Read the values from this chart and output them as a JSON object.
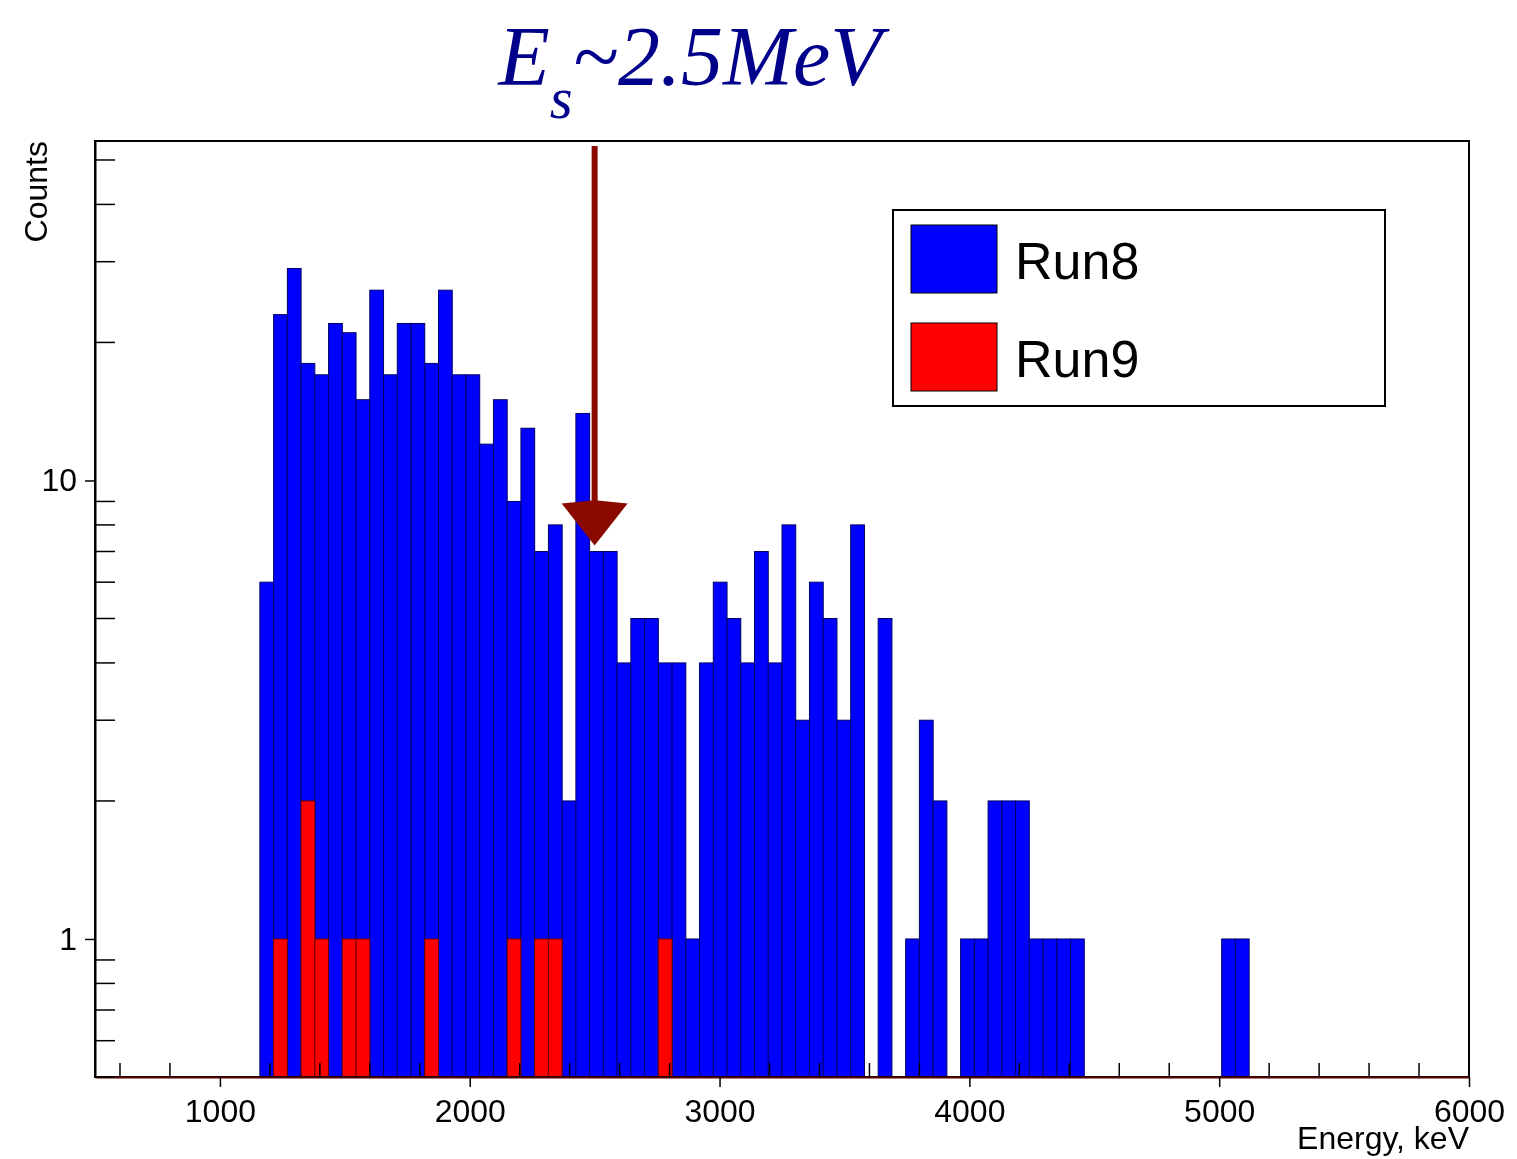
{
  "chart_data": {
    "type": "histogram",
    "title": "E$_{s}$~2.5MeV",
    "xlabel": "Energy, keV",
    "ylabel": "Counts",
    "bins": [
      1160,
      1215,
      1270,
      1325,
      1380,
      1435,
      1490,
      1545,
      1600,
      1655,
      1710,
      1765,
      1820,
      1875,
      1930,
      1985,
      2040,
      2095,
      2150,
      2205,
      2260,
      2315,
      2370,
      2425,
      2480,
      2535,
      2590,
      2645,
      2700,
      2755,
      2810,
      2865,
      2920,
      2975,
      3030,
      3085,
      3140,
      3195,
      3250,
      3305,
      3360,
      3415,
      3470,
      3525,
      3580,
      3635,
      3690,
      3745,
      3800,
      3855,
      3910,
      3965,
      4020,
      4075,
      4130,
      4185,
      4240,
      4295,
      4350,
      4405,
      4460,
      4515,
      4570,
      4625,
      4680,
      4735,
      4790,
      4845,
      4900,
      4955,
      5010,
      5065,
      5120
    ],
    "series": [
      {
        "name": "Run8",
        "color": "#0000ff",
        "values": [
          6,
          23,
          29,
          18,
          17,
          22,
          21,
          15,
          26,
          17,
          22,
          22,
          18,
          26,
          17,
          17,
          12,
          15,
          9,
          13,
          7,
          8,
          2,
          14,
          7,
          7,
          4,
          5,
          5,
          4,
          4,
          1,
          4,
          6,
          5,
          4,
          7,
          4,
          8,
          3,
          6,
          5,
          3,
          8,
          null,
          5,
          null,
          1,
          3,
          2,
          null,
          1,
          1,
          2,
          2,
          2,
          1,
          1,
          1,
          1,
          null,
          null,
          null,
          null,
          null,
          null,
          null,
          null,
          null,
          null,
          1,
          1
        ]
      },
      {
        "name": "Run9",
        "color": "#ff0000",
        "values": [
          null,
          1,
          null,
          2,
          1,
          null,
          1,
          1,
          null,
          null,
          null,
          null,
          1,
          null,
          null,
          null,
          null,
          null,
          1,
          null,
          1,
          1,
          null,
          null,
          null,
          null,
          null,
          null,
          null,
          1,
          null,
          null,
          null,
          null,
          null,
          null,
          null,
          null,
          null,
          null,
          null,
          null,
          null,
          null,
          null,
          null,
          null,
          null,
          null,
          null,
          null,
          null,
          null,
          null,
          null,
          null,
          null,
          null,
          null,
          null,
          null,
          null,
          null,
          null,
          null,
          null,
          null,
          null,
          null,
          null,
          null,
          null
        ]
      }
    ],
    "xlim": [
      500,
      6000
    ],
    "xticks": [
      1000,
      2000,
      3000,
      4000,
      5000,
      6000
    ],
    "ylim": [
      0.5,
      55
    ],
    "yticks": [
      1,
      10
    ],
    "log": "y",
    "legend": "top right"
  }
}
